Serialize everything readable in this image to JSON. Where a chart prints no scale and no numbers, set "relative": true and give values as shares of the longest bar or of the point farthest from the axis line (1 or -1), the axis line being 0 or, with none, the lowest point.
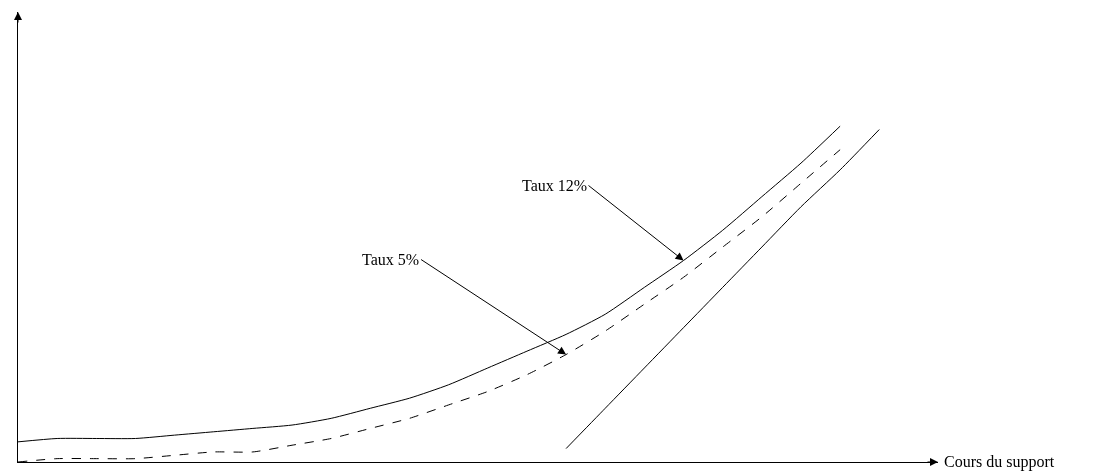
{
  "chart_data": {
    "type": "line",
    "relative": true,
    "xlabel": "Cours du support",
    "marker": "none",
    "categories": [
      null,
      null,
      null,
      null,
      null,
      null,
      null,
      null,
      null,
      null,
      null,
      null,
      null,
      null,
      null,
      null,
      null,
      null,
      null,
      null,
      null,
      null,
      null
    ],
    "series": [
      {
        "color": "#000000",
        "line_style": "solid",
        "values": [
          0.06,
          0.07,
          0.07,
          0.07,
          0.08,
          0.09,
          0.1,
          0.11,
          0.13,
          0.16,
          0.19,
          0.23,
          0.28,
          0.33,
          0.38,
          0.44,
          0.52,
          0.6,
          0.69,
          0.79,
          0.89,
          1.0,
          null
        ]
      },
      {
        "color": "#000000",
        "line_style": "dashed",
        "values": [
          0.0,
          0.01,
          0.01,
          0.01,
          0.02,
          0.03,
          0.03,
          0.05,
          0.07,
          0.1,
          0.13,
          0.17,
          0.21,
          0.26,
          0.32,
          0.39,
          0.47,
          0.55,
          0.64,
          0.73,
          0.83,
          0.93,
          null
        ]
      },
      {
        "color": "#000000",
        "line_style": "solid",
        "values": [
          null,
          null,
          null,
          null,
          null,
          null,
          null,
          null,
          null,
          null,
          null,
          null,
          null,
          null,
          0.04,
          0.16,
          0.28,
          0.4,
          0.52,
          0.64,
          0.76,
          0.87,
          0.99
        ]
      }
    ],
    "annotations": [
      "Taux 12%",
      "Taux 5%"
    ]
  }
}
